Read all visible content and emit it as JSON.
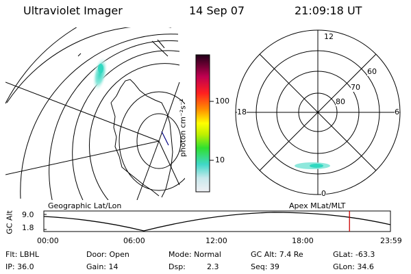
{
  "header": {
    "instrument": "Ultraviolet Imager",
    "date": "14 Sep 07",
    "time": "21:09:18 UT"
  },
  "polar_plot": {
    "mlt_labels": [
      "12",
      "18",
      "6",
      "0"
    ],
    "mlat_labels": [
      "60",
      "70",
      "80"
    ]
  },
  "colorbar": {
    "unit_label": "photon cm⁻²s⁻¹",
    "tick_labels": [
      "100",
      "10"
    ],
    "colors": [
      "#e8ecf0",
      "#c8e8ec",
      "#40d8c8",
      "#40e000",
      "#c0f000",
      "#ffff00",
      "#ff9000",
      "#ff2020",
      "#c00050",
      "#300020"
    ]
  },
  "orbit": {
    "left_title": "Geographic Lat/Lon",
    "right_title": "Apex MLat/MLT",
    "y_axis_title": "GC Alt",
    "y_max_label": "9.0",
    "y_min_label": "1.8",
    "time_labels": [
      "00:00",
      "06:00",
      "12:00",
      "18:00",
      "23:59"
    ],
    "marker_time_hours": 21.15,
    "marker_color": "#cc0000"
  },
  "footer": {
    "flt": "Flt: LBHL",
    "ip": "IP: 36.0",
    "door": "Door: Open",
    "gain": "Gain: 14",
    "mode": "Mode: Normal",
    "dsp_label": "Dsp:",
    "dsp_value": "2.3",
    "gc_alt": "GC Alt: 7.4 Re",
    "seq": "Seq: 39",
    "glat": "GLat: -63.3",
    "glon": "GLon: 34.6"
  }
}
